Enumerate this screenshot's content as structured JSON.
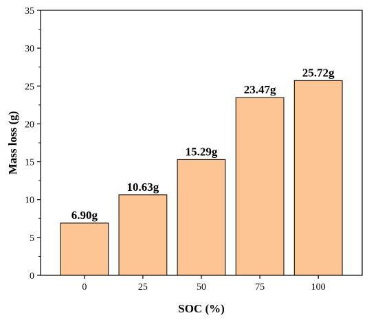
{
  "chart_data": {
    "type": "bar",
    "categories": [
      "0",
      "25",
      "50",
      "75",
      "100"
    ],
    "values": [
      6.9,
      10.63,
      15.29,
      23.47,
      25.72
    ],
    "data_labels": [
      "6.90g",
      "10.63g",
      "15.29g",
      "23.47g",
      "25.72g"
    ],
    "xlabel": "SOC (%)",
    "ylabel": "Mass loss (g)",
    "ylim": [
      0,
      35
    ],
    "yticks": [
      "0",
      "5",
      "10",
      "15",
      "20",
      "25",
      "30",
      "35"
    ],
    "bar_color": "#FDC593",
    "grid": false
  }
}
